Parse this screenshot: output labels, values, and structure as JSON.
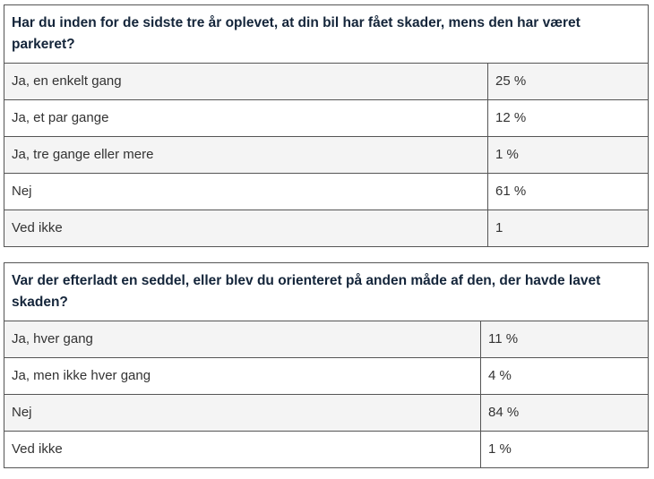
{
  "tables": [
    {
      "question": "Har du inden for de sidste tre år oplevet, at din bil har fået skader, mens den har været parkeret?",
      "rows": [
        {
          "answer": "Ja, en enkelt gang",
          "value": "25 %"
        },
        {
          "answer": "Ja, et par gange",
          "value": "12 %"
        },
        {
          "answer": "Ja, tre gange eller mere",
          "value": "1 %"
        },
        {
          "answer": "Nej",
          "value": "61 %"
        },
        {
          "answer": "Ved ikke",
          "value": "1"
        }
      ]
    },
    {
      "question": "Var der efterladt en seddel, eller blev du orienteret på anden måde af den, der havde lavet skaden?",
      "rows": [
        {
          "answer": "Ja, hver gang",
          "value": "11 %"
        },
        {
          "answer": "Ja, men ikke hver gang",
          "value": "4 %"
        },
        {
          "answer": "Nej",
          "value": "84 %"
        },
        {
          "answer": "Ved ikke",
          "value": "1 %"
        }
      ]
    }
  ]
}
